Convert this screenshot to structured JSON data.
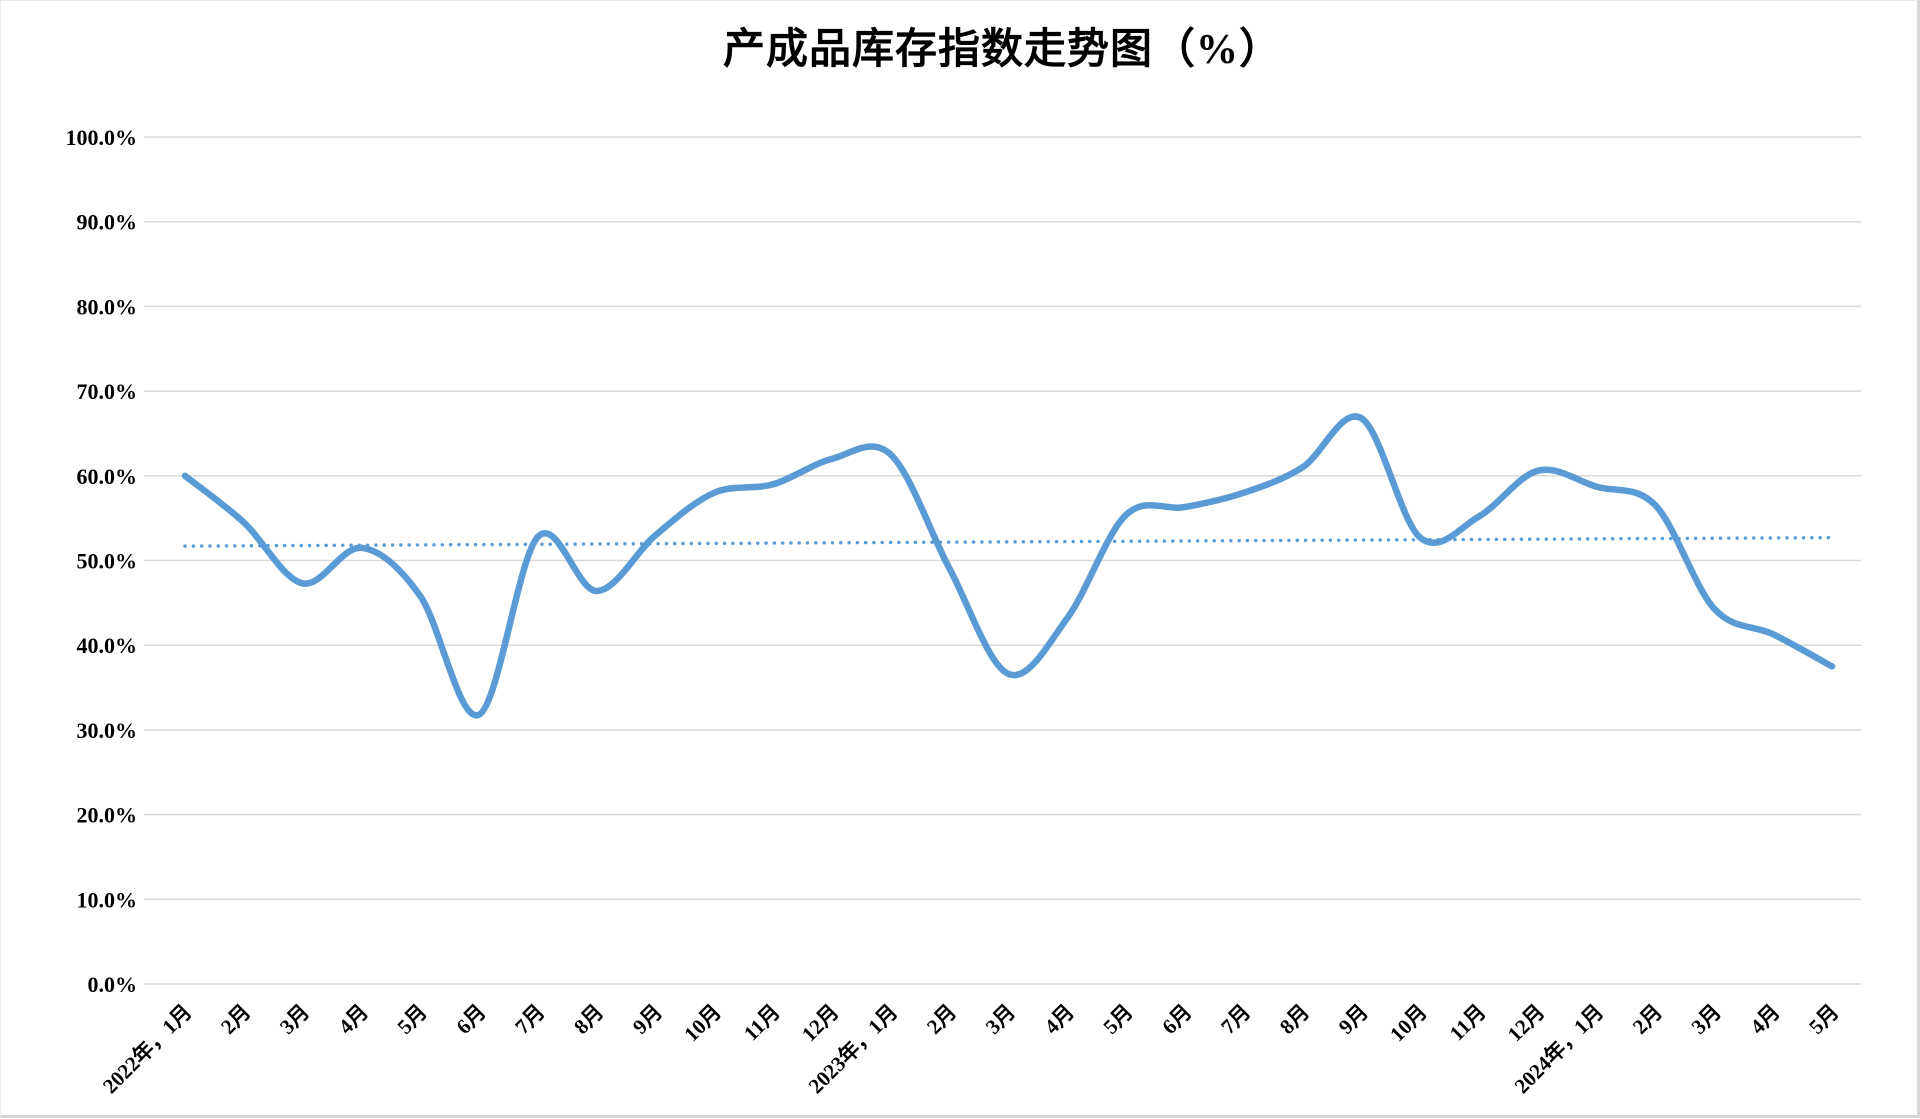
{
  "page": {
    "title": "产成品库存指数走势图（%）"
  },
  "chart_data": {
    "type": "line",
    "title": "产成品库存指数走势图（%）",
    "categories": [
      "2022年，1月",
      "2月",
      "3月",
      "4月",
      "5月",
      "6月",
      "7月",
      "8月",
      "9月",
      "10月",
      "11月",
      "12月",
      "2023年，1月",
      "2月",
      "3月",
      "4月",
      "5月",
      "6月",
      "7月",
      "8月",
      "9月",
      "10月",
      "11月",
      "12月",
      "2024年，1月",
      "2月",
      "3月",
      "4月",
      "5月"
    ],
    "series": [
      {
        "name": "产成品库存指数",
        "smooth": true,
        "color": "#5B9BD5",
        "values": [
          60.0,
          54.5,
          47.3,
          51.5,
          45.8,
          31.8,
          52.8,
          46.4,
          53.0,
          58.0,
          59.0,
          62.0,
          62.5,
          49.0,
          36.6,
          43.2,
          55.4,
          56.3,
          58.0,
          61.0,
          66.8,
          52.7,
          55.2,
          60.6,
          58.7,
          56.5,
          44.3,
          41.3,
          37.5
        ]
      }
    ],
    "trendline": {
      "style": "dotted",
      "color": "#5B9BD5",
      "start_value": 51.7,
      "end_value": 52.7
    },
    "xlabel": "",
    "ylabel": "",
    "ylim": [
      0,
      100
    ],
    "ytick_step": 10,
    "yticks": [
      "0.0%",
      "10.0%",
      "20.0%",
      "30.0%",
      "40.0%",
      "50.0%",
      "60.0%",
      "70.0%",
      "80.0%",
      "90.0%",
      "100.0%"
    ],
    "x_label_rotation": -45,
    "grid": "horizontal",
    "legend": "none",
    "colors": {
      "line": "#5B9BD5",
      "gridline": "#D9D9D9",
      "text": "#000000",
      "background": "#FFFFFF"
    }
  }
}
